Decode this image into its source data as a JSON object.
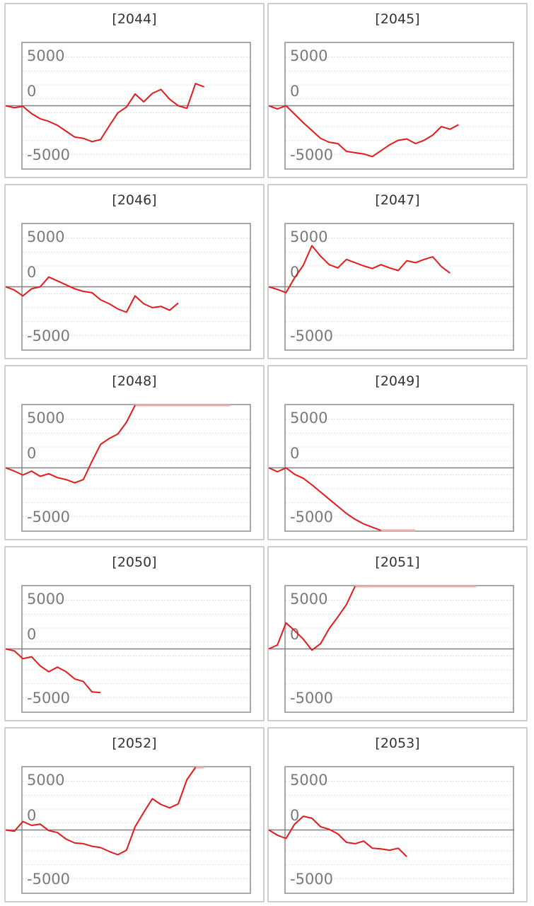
{
  "chart_data": [
    {
      "type": "line",
      "title": "[2044]",
      "yticks": [
        5000,
        0,
        -5000
      ],
      "ylim": [
        -9600,
        9600
      ],
      "series": [
        {
          "values": [
            0,
            -300,
            -100,
            -1200,
            -2000,
            -2400,
            -3000,
            -3900,
            -4800,
            -5000,
            -5500,
            -5200,
            -3100,
            -1100,
            -200,
            1800,
            600,
            1900,
            2500,
            1000,
            0,
            -400,
            3400,
            2900
          ]
        }
      ]
    },
    {
      "type": "line",
      "title": "[2045]",
      "yticks": [
        5000,
        0,
        -5000
      ],
      "ylim": [
        -9600,
        9600
      ],
      "series": [
        {
          "values": [
            0,
            -500,
            0,
            -1300,
            -2600,
            -3800,
            -5000,
            -5600,
            -5800,
            -7000,
            -7200,
            -7400,
            -7800,
            -6900,
            -6000,
            -5300,
            -5100,
            -5800,
            -5300,
            -4500,
            -3200,
            -3600,
            -2900
          ]
        }
      ]
    },
    {
      "type": "line",
      "title": "[2046]",
      "yticks": [
        5000,
        0,
        -5000
      ],
      "ylim": [
        -9600,
        9600
      ],
      "series": [
        {
          "values": [
            0,
            -500,
            -1400,
            -300,
            0,
            1500,
            900,
            300,
            -300,
            -700,
            -900,
            -2000,
            -2600,
            -3400,
            -3900,
            -1400,
            -2600,
            -3200,
            -3000,
            -3600,
            -2500
          ]
        }
      ]
    },
    {
      "type": "line",
      "title": "[2047]",
      "yticks": [
        5000,
        0,
        -5000
      ],
      "ylim": [
        -9600,
        9600
      ],
      "series": [
        {
          "values": [
            0,
            -400,
            -900,
            1400,
            3300,
            6300,
            4700,
            3400,
            2900,
            4200,
            3700,
            3200,
            2800,
            3400,
            2900,
            2500,
            4000,
            3700,
            4200,
            4600,
            3100,
            2100
          ]
        }
      ]
    },
    {
      "type": "line",
      "title": "[2048]",
      "yticks": [
        5000,
        0,
        -5000
      ],
      "ylim": [
        -9600,
        9600
      ],
      "series": [
        {
          "values": [
            0,
            -500,
            -1100,
            -500,
            -1300,
            -900,
            -1500,
            -1800,
            -2300,
            -1800,
            1000,
            3600,
            4500,
            5200,
            7000,
            9600
          ]
        }
      ],
      "clipped_segment": {
        "from_index": 15,
        "to_index": 26,
        "value": 9600
      }
    },
    {
      "type": "line",
      "title": "[2049]",
      "yticks": [
        5000,
        0,
        -5000
      ],
      "ylim": [
        -9600,
        9600
      ],
      "series": [
        {
          "values": [
            0,
            -600,
            0,
            -1000,
            -1600,
            -2600,
            -3700,
            -4800,
            -5900,
            -7000,
            -7900,
            -8600,
            -9100,
            -9600
          ]
        }
      ],
      "clipped_segment": {
        "from_index": 13,
        "to_index": 17,
        "value": -9600
      }
    },
    {
      "type": "line",
      "title": "[2050]",
      "yticks": [
        5000,
        0,
        -5000
      ],
      "ylim": [
        -9600,
        9600
      ],
      "series": [
        {
          "values": [
            0,
            -300,
            -1500,
            -1200,
            -2600,
            -3500,
            -2800,
            -3500,
            -4600,
            -5000,
            -6600,
            -6700
          ]
        }
      ]
    },
    {
      "type": "line",
      "title": "[2051]",
      "yticks": [
        5000,
        0,
        -5000
      ],
      "ylim": [
        -9600,
        9600
      ],
      "series": [
        {
          "values": [
            0,
            600,
            4000,
            2800,
            1500,
            -200,
            800,
            3100,
            4900,
            6800,
            9600
          ]
        }
      ],
      "clipped_segment": {
        "from_index": 10,
        "to_index": 24,
        "value": 9600
      }
    },
    {
      "type": "line",
      "title": "[2052]",
      "yticks": [
        5000,
        0,
        -5000
      ],
      "ylim": [
        -9600,
        9600
      ],
      "series": [
        {
          "values": [
            0,
            -200,
            1300,
            700,
            900,
            -100,
            -400,
            -1400,
            -2000,
            -2100,
            -2500,
            -2700,
            -3300,
            -3800,
            -3100,
            500,
            2700,
            4800,
            3900,
            3400,
            4000,
            7700,
            9600
          ]
        }
      ],
      "clipped_segment": {
        "from_index": 22,
        "to_index": 23,
        "value": 9600
      }
    },
    {
      "type": "line",
      "title": "[2053]",
      "yticks": [
        5000,
        0,
        -5000
      ],
      "ylim": [
        -9600,
        9600
      ],
      "series": [
        {
          "values": [
            0,
            -800,
            -1300,
            900,
            2100,
            1800,
            500,
            100,
            -600,
            -1900,
            -2100,
            -1700,
            -2800,
            -2900,
            -3100,
            -2800,
            -4100
          ]
        }
      ]
    }
  ],
  "colors": {
    "line": "#e31a1c",
    "clipped": "#e8b0b0",
    "zero_line": "#7f7f7f",
    "grid": "#e0e0e0",
    "frame": "#a8a8a8",
    "tick": "#7a7a7a",
    "panel_border": "#cfcfcf"
  }
}
